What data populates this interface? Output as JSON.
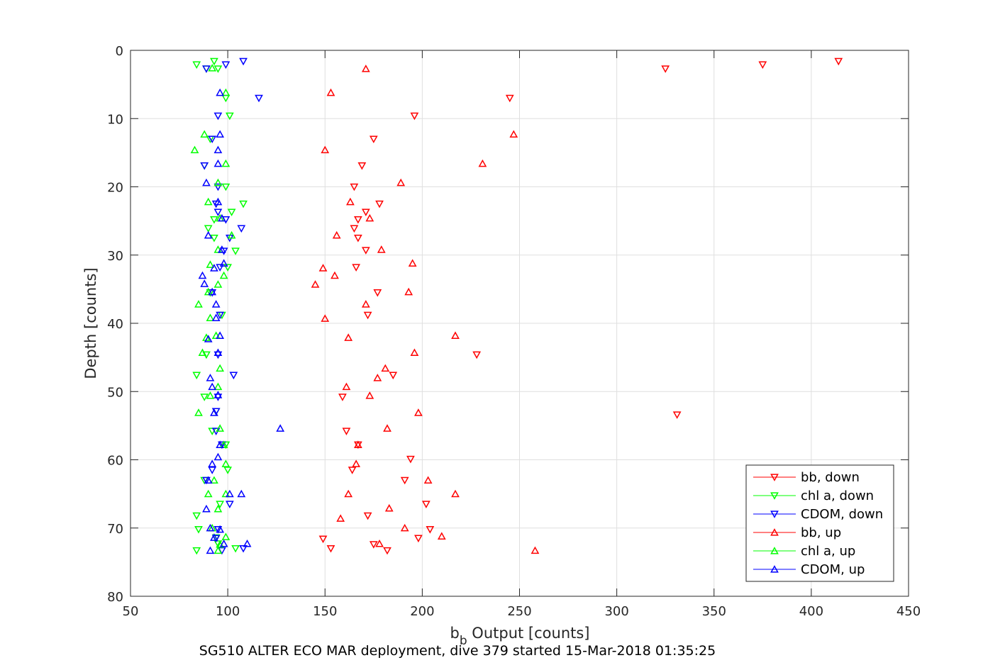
{
  "chart_data": {
    "type": "scatter",
    "xlabel_main": "b",
    "xlabel_sub": "b",
    "xlabel_rest": " Output [counts]",
    "ylabel": "Depth [counts]",
    "caption": "SG510 ALTER ECO MAR deployment, dive 379 started 15-Mar-2018 01:35:25",
    "xlim": [
      50,
      450
    ],
    "ylim": [
      0,
      80
    ],
    "y_reversed": true,
    "grid": true,
    "x_ticks": [
      50,
      100,
      150,
      200,
      250,
      300,
      350,
      400,
      450
    ],
    "y_ticks": [
      0,
      10,
      20,
      30,
      40,
      50,
      60,
      70,
      80
    ],
    "legend_placement": "bottom-right",
    "series": [
      {
        "name": "bb, down",
        "color": "#ff0000",
        "marker": "triangle-down",
        "points": [
          [
            414,
            1.6
          ],
          [
            375,
            2.1
          ],
          [
            325,
            2.7
          ],
          [
            245,
            7.0
          ],
          [
            196,
            9.6
          ],
          [
            175,
            13.0
          ],
          [
            169,
            16.9
          ],
          [
            165,
            20.0
          ],
          [
            178,
            22.5
          ],
          [
            171,
            23.7
          ],
          [
            167,
            24.8
          ],
          [
            165,
            26.1
          ],
          [
            167,
            27.5
          ],
          [
            171,
            29.3
          ],
          [
            166,
            31.8
          ],
          [
            177,
            35.5
          ],
          [
            172,
            38.8
          ],
          [
            228,
            44.6
          ],
          [
            185,
            47.6
          ],
          [
            159,
            50.8
          ],
          [
            331,
            53.4
          ],
          [
            161,
            55.8
          ],
          [
            167,
            57.8
          ],
          [
            194,
            59.9
          ],
          [
            164,
            61.5
          ],
          [
            191,
            63.0
          ],
          [
            202,
            66.5
          ],
          [
            172,
            68.2
          ],
          [
            204,
            70.2
          ],
          [
            198,
            71.5
          ],
          [
            149,
            71.6
          ],
          [
            175,
            72.4
          ],
          [
            153,
            73.0
          ],
          [
            182,
            73.3
          ]
        ]
      },
      {
        "name": "chl a, down",
        "color": "#00ff00",
        "marker": "triangle-down",
        "points": [
          [
            84,
            2.1
          ],
          [
            93,
            1.6
          ],
          [
            89,
            2.7
          ],
          [
            95,
            2.7
          ],
          [
            99,
            7.0
          ],
          [
            101,
            9.6
          ],
          [
            91,
            13.0
          ],
          [
            88,
            16.9
          ],
          [
            99,
            20.0
          ],
          [
            108,
            22.5
          ],
          [
            102,
            23.7
          ],
          [
            93,
            24.8
          ],
          [
            90,
            26.1
          ],
          [
            93,
            27.5
          ],
          [
            104,
            29.4
          ],
          [
            100,
            31.8
          ],
          [
            91,
            35.5
          ],
          [
            97,
            38.8
          ],
          [
            89,
            44.6
          ],
          [
            84,
            47.6
          ],
          [
            88,
            50.8
          ],
          [
            94,
            52.9
          ],
          [
            92,
            55.8
          ],
          [
            99,
            57.8
          ],
          [
            100,
            61.5
          ],
          [
            88,
            63.0
          ],
          [
            96,
            66.5
          ],
          [
            84,
            68.2
          ],
          [
            85,
            70.2
          ],
          [
            94,
            71.4
          ],
          [
            104,
            73.0
          ],
          [
            95,
            72.3
          ],
          [
            84,
            73.3
          ]
        ]
      },
      {
        "name": "CDOM, down",
        "color": "#0000ff",
        "marker": "triangle-down",
        "points": [
          [
            108,
            1.6
          ],
          [
            99,
            2.1
          ],
          [
            89,
            2.7
          ],
          [
            116,
            7.0
          ],
          [
            95,
            9.6
          ],
          [
            92,
            13.0
          ],
          [
            88,
            16.9
          ],
          [
            95,
            20.0
          ],
          [
            94,
            22.5
          ],
          [
            95,
            23.7
          ],
          [
            99,
            24.8
          ],
          [
            107,
            26.1
          ],
          [
            101,
            27.5
          ],
          [
            98,
            29.4
          ],
          [
            96,
            31.8
          ],
          [
            92,
            35.5
          ],
          [
            96,
            38.8
          ],
          [
            95,
            44.6
          ],
          [
            103,
            47.6
          ],
          [
            95,
            50.8
          ],
          [
            94,
            52.9
          ],
          [
            94,
            55.8
          ],
          [
            97,
            57.8
          ],
          [
            92,
            61.5
          ],
          [
            89,
            63.0
          ],
          [
            101,
            66.5
          ],
          [
            95,
            70.2
          ],
          [
            94,
            71.5
          ],
          [
            108,
            73.0
          ],
          [
            97,
            73.3
          ]
        ]
      },
      {
        "name": "bb, up",
        "color": "#ff0000",
        "marker": "triangle-up",
        "points": [
          [
            171,
            2.7
          ],
          [
            153,
            6.2
          ],
          [
            247,
            12.3
          ],
          [
            150,
            14.6
          ],
          [
            231,
            16.6
          ],
          [
            189,
            19.4
          ],
          [
            163,
            22.2
          ],
          [
            173,
            24.6
          ],
          [
            156,
            27.1
          ],
          [
            179,
            29.2
          ],
          [
            149,
            31.9
          ],
          [
            195,
            31.2
          ],
          [
            155,
            33.0
          ],
          [
            145,
            34.3
          ],
          [
            193,
            35.4
          ],
          [
            171,
            37.2
          ],
          [
            150,
            39.3
          ],
          [
            217,
            41.8
          ],
          [
            162,
            42.1
          ],
          [
            196,
            44.3
          ],
          [
            181,
            46.6
          ],
          [
            177,
            48.0
          ],
          [
            161,
            49.3
          ],
          [
            173,
            50.6
          ],
          [
            198,
            53.1
          ],
          [
            182,
            55.4
          ],
          [
            167,
            57.8
          ],
          [
            166,
            60.6
          ],
          [
            203,
            63.0
          ],
          [
            217,
            65.0
          ],
          [
            162,
            65.0
          ],
          [
            183,
            67.1
          ],
          [
            158,
            68.6
          ],
          [
            191,
            70.0
          ],
          [
            210,
            71.2
          ],
          [
            178,
            72.3
          ],
          [
            258,
            73.3
          ]
        ]
      },
      {
        "name": "chl a, up",
        "color": "#00ff00",
        "marker": "triangle-up",
        "points": [
          [
            92,
            2.6
          ],
          [
            99,
            6.2
          ],
          [
            88,
            12.3
          ],
          [
            83,
            14.6
          ],
          [
            99,
            16.6
          ],
          [
            95,
            19.4
          ],
          [
            90,
            22.2
          ],
          [
            96,
            24.6
          ],
          [
            102,
            27.1
          ],
          [
            95,
            29.2
          ],
          [
            91,
            31.4
          ],
          [
            98,
            33.0
          ],
          [
            95,
            34.3
          ],
          [
            90,
            35.4
          ],
          [
            85,
            37.2
          ],
          [
            91,
            39.2
          ],
          [
            94,
            41.8
          ],
          [
            89,
            42.1
          ],
          [
            87,
            44.3
          ],
          [
            96,
            46.6
          ],
          [
            95,
            49.3
          ],
          [
            91,
            50.6
          ],
          [
            85,
            53.1
          ],
          [
            96,
            55.4
          ],
          [
            98,
            57.8
          ],
          [
            99,
            60.6
          ],
          [
            93,
            63.0
          ],
          [
            90,
            65.0
          ],
          [
            99,
            65.0
          ],
          [
            95,
            67.2
          ],
          [
            92,
            70.0
          ],
          [
            99,
            71.3
          ],
          [
            96,
            72.4
          ],
          [
            95,
            73.3
          ]
        ]
      },
      {
        "name": "CDOM, up",
        "color": "#0000ff",
        "marker": "triangle-up",
        "points": [
          [
            96,
            6.2
          ],
          [
            96,
            12.3
          ],
          [
            95,
            14.6
          ],
          [
            95,
            16.6
          ],
          [
            89,
            19.4
          ],
          [
            95,
            22.2
          ],
          [
            97,
            24.6
          ],
          [
            90,
            27.1
          ],
          [
            97,
            29.2
          ],
          [
            93,
            31.9
          ],
          [
            98,
            31.2
          ],
          [
            87,
            33.0
          ],
          [
            88,
            34.2
          ],
          [
            92,
            35.4
          ],
          [
            94,
            37.2
          ],
          [
            94,
            39.2
          ],
          [
            96,
            41.8
          ],
          [
            90,
            42.3
          ],
          [
            95,
            44.3
          ],
          [
            91,
            48.0
          ],
          [
            92,
            49.3
          ],
          [
            95,
            50.5
          ],
          [
            93,
            53.1
          ],
          [
            127,
            55.4
          ],
          [
            96,
            57.8
          ],
          [
            95,
            59.6
          ],
          [
            92,
            60.6
          ],
          [
            90,
            63.0
          ],
          [
            101,
            65.0
          ],
          [
            107,
            65.0
          ],
          [
            89,
            67.2
          ],
          [
            91,
            70.0
          ],
          [
            96,
            70.2
          ],
          [
            93,
            71.4
          ],
          [
            98,
            72.3
          ],
          [
            110,
            72.3
          ],
          [
            91,
            73.3
          ]
        ]
      }
    ]
  }
}
